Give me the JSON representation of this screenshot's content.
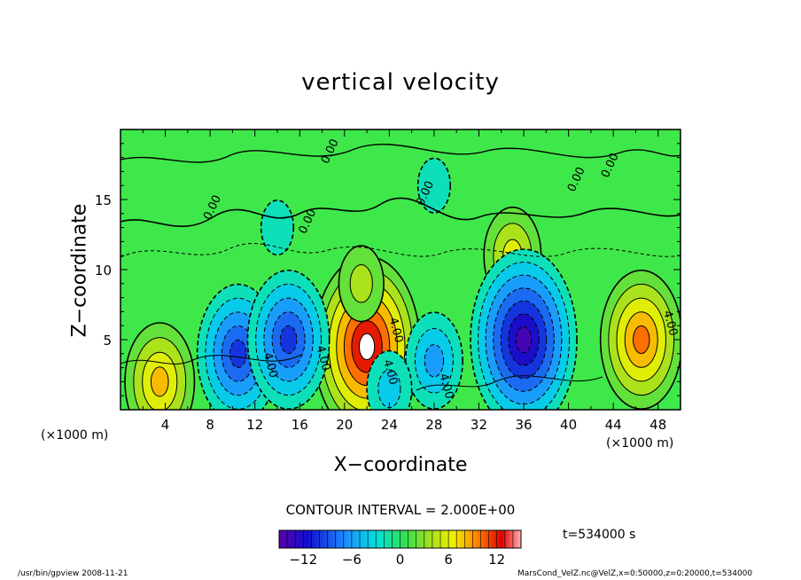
{
  "footer": {
    "left": "/usr/bin/gpview   2008-11-21",
    "right": "MarsCond_VelZ.nc@VelZ,x=0:50000,z=0:20000,t=534000"
  },
  "colorbar": {
    "contour_interval": "CONTOUR INTERVAL = 2.000E+00",
    "time_label": "t=534000 s",
    "ticks": [
      -12,
      -6,
      0,
      6,
      12
    ],
    "range": [
      -15,
      15
    ]
  },
  "chart_data": {
    "type": "heatmap",
    "title": "vertical velocity",
    "xlabel": "X−coordinate",
    "ylabel": "Z−coordinate",
    "x_unit": "(×1000 m)",
    "y_unit": "(×1000 m)",
    "xlim": [
      0,
      50
    ],
    "ylim": [
      0,
      20
    ],
    "x_ticks": [
      4,
      8,
      12,
      16,
      20,
      24,
      28,
      32,
      36,
      40,
      44,
      48
    ],
    "y_ticks": [
      5,
      10,
      15
    ],
    "contour_labels": [
      "0.00",
      "0.00",
      "0.00",
      "0.00",
      "0.00",
      "0.00",
      "4.00",
      "4.00",
      "4.00",
      "4.00",
      "4.00",
      "4.00"
    ],
    "features": [
      {
        "x": 22.0,
        "z": 4.5,
        "value": 14
      },
      {
        "x": 21.5,
        "z": 9.0,
        "value": 4
      },
      {
        "x": 46.5,
        "z": 5.0,
        "value": 10
      },
      {
        "x": 3.5,
        "z": 2.0,
        "value": 8
      },
      {
        "x": 35.0,
        "z": 11.0,
        "value": 6
      },
      {
        "x": 10.5,
        "z": 4.0,
        "value": -9
      },
      {
        "x": 15.0,
        "z": 5.0,
        "value": -9
      },
      {
        "x": 28.0,
        "z": 3.5,
        "value": -6
      },
      {
        "x": 36.0,
        "z": 5.0,
        "value": -13
      },
      {
        "x": 24.0,
        "z": 1.5,
        "value": -3
      },
      {
        "x": 14.0,
        "z": 13.0,
        "value": -2
      },
      {
        "x": 28.0,
        "z": 16.0,
        "value": -2
      }
    ]
  }
}
